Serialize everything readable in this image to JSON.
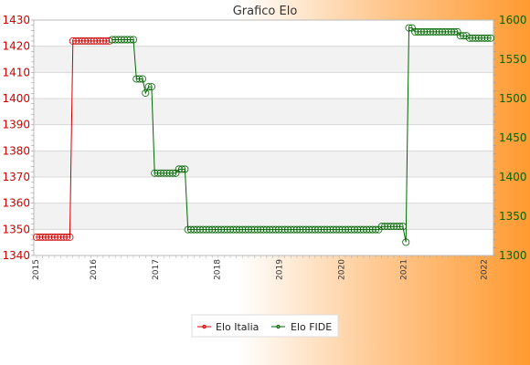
{
  "chart_data": {
    "type": "line",
    "title": "Grafico Elo",
    "grid": true,
    "legend_position": "bottom-center",
    "x_tick_labels": [
      "2015",
      "2016",
      "2017",
      "2018",
      "2019",
      "2020",
      "2021",
      "2022"
    ],
    "y_left": {
      "range": [
        1340,
        1430
      ],
      "ticks": [
        1340,
        1350,
        1360,
        1370,
        1380,
        1390,
        1400,
        1410,
        1420,
        1430
      ],
      "color": "#cc0000"
    },
    "y_right": {
      "range": [
        1300,
        1600
      ],
      "ticks": [
        1300,
        1350,
        1400,
        1450,
        1500,
        1550,
        1600
      ],
      "color": "#006600"
    },
    "series": [
      {
        "name": "Elo Italia",
        "axis": "left",
        "color": "#cc0000",
        "start_index": 0,
        "values": [
          1347,
          1347,
          1347,
          1347,
          1347,
          1347,
          1347,
          1347,
          1347,
          1347,
          1347,
          1347,
          1422,
          1422,
          1422,
          1422,
          1422,
          1422,
          1422,
          1422,
          1422,
          1422,
          1422,
          1422,
          1422
        ]
      },
      {
        "name": "Elo FIDE",
        "axis": "right",
        "color": "#006600",
        "start_index": 25,
        "values": [
          1575,
          1575,
          1575,
          1575,
          1575,
          1575,
          1575,
          1575,
          1525,
          1525,
          1525,
          1507,
          1515,
          1515,
          1405,
          1405,
          1405,
          1405,
          1405,
          1405,
          1405,
          1405,
          1410,
          1410,
          1410,
          1333,
          1333,
          1333,
          1333,
          1333,
          1333,
          1333,
          1333,
          1333,
          1333,
          1333,
          1333,
          1333,
          1333,
          1333,
          1333,
          1333,
          1333,
          1333,
          1333,
          1333,
          1333,
          1333,
          1333,
          1333,
          1333,
          1333,
          1333,
          1333,
          1333,
          1333,
          1333,
          1333,
          1333,
          1333,
          1333,
          1333,
          1333,
          1333,
          1333,
          1333,
          1333,
          1333,
          1333,
          1333,
          1333,
          1333,
          1333,
          1333,
          1333,
          1333,
          1333,
          1333,
          1333,
          1333,
          1333,
          1333,
          1333,
          1333,
          1333,
          1333,
          1333,
          1333,
          1333,
          1337,
          1337,
          1337,
          1337,
          1337,
          1337,
          1337,
          1337,
          1317,
          1590,
          1590,
          1585,
          1585,
          1585,
          1585,
          1585,
          1585,
          1585,
          1585,
          1585,
          1585,
          1585,
          1585,
          1585,
          1585,
          1585,
          1580,
          1580,
          1580,
          1577,
          1577,
          1577,
          1577,
          1577,
          1577,
          1577,
          1577
        ]
      }
    ]
  }
}
